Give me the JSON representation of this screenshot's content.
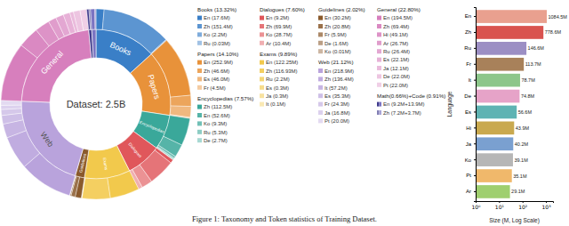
{
  "caption": "Figure 1: Taxonomy and Token statistics of Training Dataset.",
  "chart_data": [
    {
      "type": "sunburst",
      "center_label": "Dataset: 2.5B",
      "categories": [
        {
          "name": "Books",
          "percent": 13.32,
          "label": "Books (13.32%)",
          "color": "#3a7fc7",
          "items": [
            {
              "value": 17.6,
              "label": "En (17.6M)"
            },
            {
              "value": 151.4,
              "label": "Zh (151.4M)"
            },
            {
              "value": 2.2,
              "label": "Ko (2.2M)"
            },
            {
              "value": 0.03,
              "label": "Ru (0.03M)"
            }
          ]
        },
        {
          "name": "Papers",
          "percent": 14.1,
          "label": "Papers (14.10%)",
          "color": "#e8923a",
          "items": [
            {
              "value": 252.9,
              "label": "En (252.9M)"
            },
            {
              "value": 46.6,
              "label": "Zh (46.6M)"
            },
            {
              "value": 46.0,
              "label": "Es (46.0M)"
            },
            {
              "value": 4.5,
              "label": "Fr (4.5M)"
            }
          ]
        },
        {
          "name": "Encyclopedias",
          "percent": 7.57,
          "label": "Encyclopedias (7.57%)",
          "color": "#3aa89a",
          "items": [
            {
              "value": 112.5,
              "label": "Zh (112.5M)"
            },
            {
              "value": 52.6,
              "label": "En (52.6M)"
            },
            {
              "value": 9.3,
              "label": "Ko (9.3M)"
            },
            {
              "value": 5.3,
              "label": "Ru (5.3M)"
            },
            {
              "value": 2.7,
              "label": "De (2.7M)"
            }
          ]
        },
        {
          "name": "Dialogues",
          "percent": 7.6,
          "label": "Dialogues (7.60%)",
          "color": "#e0575b",
          "items": [
            {
              "value": 9.2,
              "label": "En (9.2M)"
            },
            {
              "value": 69.9,
              "label": "Zh (69.9M)"
            },
            {
              "value": 28.7,
              "label": "Ko (28.7M)"
            },
            {
              "value": 10.4,
              "label": "Ar (10.4M)"
            }
          ]
        },
        {
          "name": "Exams",
          "percent": 9.89,
          "label": "Exams (9.89%)",
          "color": "#f2c94c",
          "items": [
            {
              "value": 122.25,
              "label": "En (122.25M)"
            },
            {
              "value": 116.93,
              "label": "Zh (116.93M)"
            },
            {
              "value": 2.2,
              "label": "Ru (2.2M)"
            },
            {
              "value": 0.3,
              "label": "Es (0.3M)"
            },
            {
              "value": 0.3,
              "label": "Ja (0.3M)"
            },
            {
              "value": 0.1,
              "label": "It (0.1M)"
            }
          ]
        },
        {
          "name": "Guidelines",
          "percent": 2.02,
          "label": "Guidelines (2.02%)",
          "color": "#8a5a2c",
          "items": [
            {
              "value": 30.2,
              "label": "En (30.2M)"
            },
            {
              "value": 20.8,
              "label": "Zh (20.8M)"
            },
            {
              "value": 5.9,
              "label": "Fr (5.9M)"
            },
            {
              "value": 1.6,
              "label": "De (1.6M)"
            },
            {
              "value": 0.01,
              "label": "Ko (0.01M)"
            }
          ]
        },
        {
          "name": "Web",
          "percent": 21.12,
          "label": "Web (21.12%)",
          "color": "#b9a3dc",
          "items": [
            {
              "value": 218.9,
              "label": "En (218.9M)"
            },
            {
              "value": 136.4,
              "label": "Zh (136.4M)"
            },
            {
              "value": 57.2,
              "label": "It (57.2M)"
            },
            {
              "value": 35.3,
              "label": "Es (35.3M)"
            },
            {
              "value": 24.3,
              "label": "Fr (24.3M)"
            },
            {
              "value": 16.8,
              "label": "Ja (16.8M)"
            },
            {
              "value": 20.0,
              "label": "Pt (20.0M)"
            }
          ]
        },
        {
          "name": "General",
          "percent": 22.8,
          "label": "General (22.80%)",
          "color": "#d77fbd",
          "items": [
            {
              "value": 194.5,
              "label": "En (194.5M)"
            },
            {
              "value": 69.4,
              "label": "Zh (69.4M)"
            },
            {
              "value": 49.1,
              "label": "Hi (49.1M)"
            },
            {
              "value": 26.7,
              "label": "Ar (26.7M)"
            },
            {
              "value": 26.4,
              "label": "Ru (26.4M)"
            },
            {
              "value": 22.1,
              "label": "Es (22.1M)"
            },
            {
              "value": 12.1,
              "label": "Ja (12.1M)"
            },
            {
              "value": 22.0,
              "label": "De (22.0M)"
            },
            {
              "value": 22.0,
              "label": "Pt (22.0M)"
            }
          ]
        },
        {
          "percent": 0.66,
          "color": "#3f3a8c",
          "items": [
            {
              "value": 9.2
            },
            {
              "value": 7.2
            }
          ]
        },
        {
          "percent": 0.91,
          "color": "#7b74c2",
          "items": [
            {
              "value": 13.9
            },
            {
              "value": 3.7
            }
          ]
        }
      ],
      "combined_legend": {
        "label": "Math(0.66%)+Code (0.91%)",
        "items": [
          {
            "label": "En (9.2M+13.9M)"
          },
          {
            "label": "Zh (7.2M+3.7M)"
          }
        ]
      }
    },
    {
      "type": "bar",
      "orientation": "horizontal",
      "log": "x",
      "grid": false,
      "data_labels": true,
      "xlabel": "Size (M, Log Scale)",
      "ylabel": "Language",
      "categories": [
        "En",
        "Zh",
        "Ru",
        "Fr",
        "It",
        "De",
        "Es",
        "Hi",
        "Ja",
        "Ko",
        "Pt",
        "Ar"
      ],
      "values": [
        1084.5,
        778.6,
        146.6,
        113.7,
        78.7,
        74.8,
        56.6,
        43.9,
        40.2,
        39.1,
        35.1,
        29.1
      ],
      "value_labels": [
        "1084.5M",
        "778.6M",
        "146.6M",
        "113.7M",
        "78.7M",
        "74.8M",
        "56.6M",
        "43.9M",
        "40.2M",
        "39.1M",
        "35.1M",
        "29.1M"
      ],
      "colors": [
        "#e9a08f",
        "#d9534f",
        "#9c8fc4",
        "#a8815a",
        "#8cc68a",
        "#e6a3c8",
        "#5fb3b3",
        "#c9a94f",
        "#7aa0d0",
        "#b6b6b6",
        "#f0b86b",
        "#9fcf6f"
      ],
      "xlim": [
        1,
        2000
      ],
      "xticks": [
        {
          "value": 1,
          "label": "10⁰"
        },
        {
          "value": 10,
          "label": "10¹"
        },
        {
          "value": 100,
          "label": "10²"
        },
        {
          "value": 1000,
          "label": "10³"
        }
      ]
    }
  ]
}
